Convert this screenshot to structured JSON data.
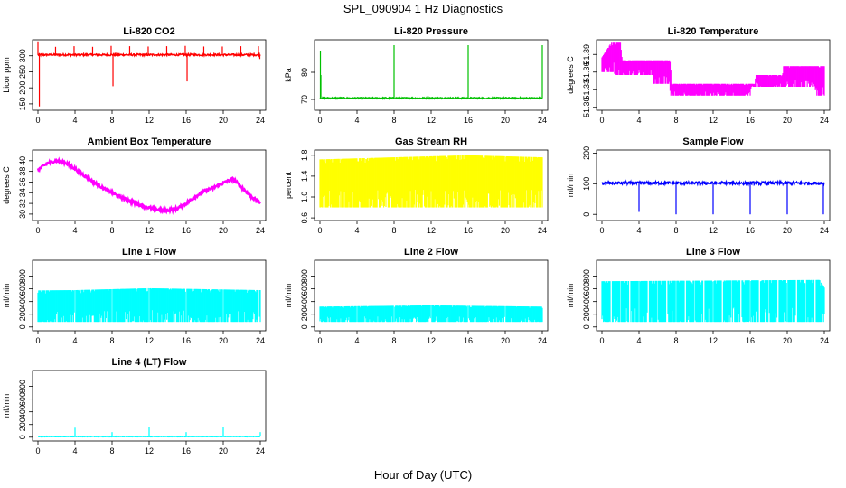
{
  "figure": {
    "title": "SPL_090904  1 Hz Diagnostics",
    "xlabel": "Hour of Day (UTC)"
  },
  "chart_data": [
    {
      "type": "line",
      "title": "Li-820 CO2",
      "ylabel": "Licor ppm",
      "color": "#ff0000",
      "xlim": [
        0,
        24
      ],
      "xticks": [
        0,
        4,
        8,
        12,
        16,
        20,
        24
      ],
      "ylim": [
        130,
        350
      ],
      "yticks": [
        "150",
        "200",
        "250",
        "300"
      ],
      "ytick_values": [
        150,
        200,
        250,
        300
      ],
      "series": [
        {
          "kind": "baseline",
          "base": 303,
          "jitter": 3
        },
        {
          "kind": "spikes",
          "x": [
            0,
            0.15,
            1.9,
            3.9,
            5.9,
            7.9,
            8.1,
            9.9,
            11.9,
            13.9,
            15.9,
            16.1,
            17.9,
            19.9,
            21.9,
            23.8,
            23.95
          ],
          "y": [
            345,
            142,
            328,
            330,
            328,
            331,
            205,
            330,
            329,
            330,
            331,
            220,
            329,
            329,
            330,
            330,
            290
          ]
        }
      ]
    },
    {
      "type": "line",
      "title": "Li-820 Pressure",
      "ylabel": "kPa",
      "color": "#00c000",
      "xlim": [
        0,
        24
      ],
      "xticks": [
        0,
        4,
        8,
        12,
        16,
        20,
        24
      ],
      "ylim": [
        66,
        92
      ],
      "yticks": [
        "70",
        "80"
      ],
      "ytick_values": [
        70,
        80
      ],
      "series": [
        {
          "kind": "baseline",
          "base": 70.5,
          "jitter": 0.25
        },
        {
          "kind": "spikes",
          "x": [
            0.05,
            0.1,
            8,
            16,
            24
          ],
          "y": [
            88,
            79,
            90,
            90,
            90
          ]
        }
      ]
    },
    {
      "type": "band",
      "title": "Li-820 Temperature",
      "ylabel": "degrees C",
      "color": "#ff00ff",
      "xlim": [
        0,
        24
      ],
      "xticks": [
        0,
        4,
        8,
        12,
        16,
        20,
        24
      ],
      "ylim": [
        51.295,
        51.415
      ],
      "yticks": [
        "51.30",
        "51.33",
        "51.36",
        "51.39"
      ],
      "ytick_values": [
        51.3,
        51.33,
        51.36,
        51.39
      ],
      "lower": [
        [
          0,
          51.36
        ],
        [
          1.3,
          51.36
        ],
        [
          1.4,
          51.355
        ],
        [
          5.5,
          51.355
        ],
        [
          5.6,
          51.34
        ],
        [
          7.3,
          51.34
        ],
        [
          7.4,
          51.32
        ],
        [
          16,
          51.32
        ],
        [
          16.1,
          51.335
        ],
        [
          23,
          51.335
        ],
        [
          23.1,
          51.32
        ],
        [
          24,
          51.32
        ]
      ],
      "upper": [
        [
          0,
          51.385
        ],
        [
          1,
          51.41
        ],
        [
          2,
          51.41
        ],
        [
          2.2,
          51.38
        ],
        [
          7.4,
          51.38
        ],
        [
          7.5,
          51.34
        ],
        [
          16.5,
          51.34
        ],
        [
          16.6,
          51.355
        ],
        [
          19.5,
          51.355
        ],
        [
          19.6,
          51.37
        ],
        [
          24,
          51.37
        ]
      ]
    },
    {
      "type": "line",
      "title": "Ambient Box Temperature",
      "ylabel": "degrees C",
      "color": "#ff00ff",
      "xlim": [
        0,
        24
      ],
      "xticks": [
        0,
        4,
        8,
        12,
        16,
        20,
        24
      ],
      "ylim": [
        28.8,
        42
      ],
      "yticks": [
        "30",
        "32",
        "34",
        "36",
        "38",
        "40"
      ],
      "ytick_values": [
        30,
        32,
        34,
        36,
        38,
        40
      ],
      "x": [
        0,
        1,
        2,
        3,
        4,
        5,
        6,
        7,
        8,
        9,
        10,
        11,
        12,
        13,
        14,
        15,
        16,
        17,
        18,
        19,
        20,
        21,
        22,
        23,
        24
      ],
      "y": [
        38.3,
        39.5,
        40,
        39.6,
        38.5,
        37.2,
        36,
        34.9,
        34,
        33.1,
        32.4,
        31.7,
        31.2,
        30.8,
        30.7,
        31,
        32,
        33.3,
        34.3,
        35,
        35.8,
        36.6,
        35,
        33.3,
        32.1
      ]
    },
    {
      "type": "band",
      "title": "Gas Stream RH",
      "ylabel": "percent",
      "color": "#ffff00",
      "xlim": [
        0,
        24
      ],
      "xticks": [
        0,
        4,
        8,
        12,
        16,
        20,
        24
      ],
      "ylim": [
        0.55,
        1.9
      ],
      "yticks": [
        "0.6",
        "1.0",
        "1.4",
        "1.8"
      ],
      "ytick_values": [
        0.6,
        1.0,
        1.4,
        1.8
      ],
      "lower": [
        [
          0,
          0.8
        ],
        [
          24,
          0.8
        ]
      ],
      "upper": [
        [
          0,
          1.72
        ],
        [
          12,
          1.78
        ],
        [
          16,
          1.8
        ],
        [
          24,
          1.76
        ]
      ]
    },
    {
      "type": "line",
      "title": "Sample Flow",
      "ylabel": "ml/min",
      "color": "#0000ff",
      "xlim": [
        0,
        24
      ],
      "xticks": [
        0,
        4,
        8,
        12,
        16,
        20,
        24
      ],
      "ylim": [
        -20,
        210
      ],
      "yticks": [
        "0",
        "100",
        "200"
      ],
      "ytick_values": [
        0,
        100,
        200
      ],
      "series": [
        {
          "kind": "baseline",
          "base": 102,
          "jitter": 5
        },
        {
          "kind": "spikes",
          "x": [
            4,
            8,
            12,
            16,
            20,
            23.9
          ],
          "y": [
            8,
            0,
            0,
            0,
            0,
            0
          ]
        }
      ]
    },
    {
      "type": "band",
      "title": "Line 1 Flow",
      "ylabel": "ml/min",
      "color": "#00ffff",
      "xlim": [
        0,
        24
      ],
      "xticks": [
        0,
        4,
        8,
        12,
        16,
        20,
        24
      ],
      "ylim": [
        -60,
        1050
      ],
      "yticks": [
        "0",
        "200",
        "400",
        "600",
        "800"
      ],
      "ytick_values": [
        0,
        200,
        400,
        600,
        800
      ],
      "lower": [
        [
          0,
          80
        ],
        [
          24,
          80
        ]
      ],
      "upper": [
        [
          0,
          575
        ],
        [
          4,
          580
        ],
        [
          12,
          610
        ],
        [
          16,
          600
        ],
        [
          24,
          580
        ]
      ],
      "gaps": [
        4,
        8,
        12,
        16,
        20,
        23.8
      ]
    },
    {
      "type": "band",
      "title": "Line 2 Flow",
      "ylabel": "ml/min",
      "color": "#00ffff",
      "xlim": [
        0,
        24
      ],
      "xticks": [
        0,
        4,
        8,
        12,
        16,
        20,
        24
      ],
      "ylim": [
        -60,
        1050
      ],
      "yticks": [
        "0",
        "200",
        "400",
        "600",
        "800"
      ],
      "ytick_values": [
        0,
        200,
        400,
        600,
        800
      ],
      "lower": [
        [
          0,
          80
        ],
        [
          24,
          80
        ]
      ],
      "upper": [
        [
          0,
          320
        ],
        [
          12,
          340
        ],
        [
          24,
          320
        ]
      ],
      "gaps": [
        4,
        8,
        12,
        16,
        20
      ]
    },
    {
      "type": "band",
      "title": "Line 3 Flow",
      "ylabel": "ml/min",
      "color": "#00ffff",
      "xlim": [
        0,
        24
      ],
      "xticks": [
        0,
        4,
        8,
        12,
        16,
        20,
        24
      ],
      "ylim": [
        -60,
        1050
      ],
      "yticks": [
        "0",
        "200",
        "400",
        "600",
        "800"
      ],
      "ytick_values": [
        0,
        200,
        400,
        600,
        800
      ],
      "lower": [
        [
          0,
          80
        ],
        [
          24,
          80
        ]
      ],
      "upper": [
        [
          0,
          720
        ],
        [
          12,
          730
        ],
        [
          23.5,
          740
        ],
        [
          24,
          620
        ]
      ],
      "gaps": [
        1,
        2,
        3,
        4,
        5,
        6,
        7,
        8,
        9,
        10,
        11,
        12,
        13,
        14,
        15,
        16,
        17,
        18,
        19,
        20,
        21,
        22,
        23
      ]
    },
    {
      "type": "line",
      "title": "Line 4 (LT) Flow",
      "ylabel": "ml/min",
      "color": "#00ffff",
      "xlim": [
        0,
        24
      ],
      "xticks": [
        0,
        4,
        8,
        12,
        16,
        20,
        24
      ],
      "ylim": [
        -60,
        1050
      ],
      "yticks": [
        "0",
        "200",
        "400",
        "600",
        "800"
      ],
      "ytick_values": [
        0,
        200,
        400,
        600,
        800
      ],
      "series": [
        {
          "kind": "baseline",
          "base": 10,
          "jitter": 4
        },
        {
          "kind": "spikes",
          "x": [
            4,
            8,
            12,
            16,
            20,
            24
          ],
          "y": [
            150,
            80,
            160,
            80,
            160,
            80
          ]
        }
      ]
    }
  ]
}
